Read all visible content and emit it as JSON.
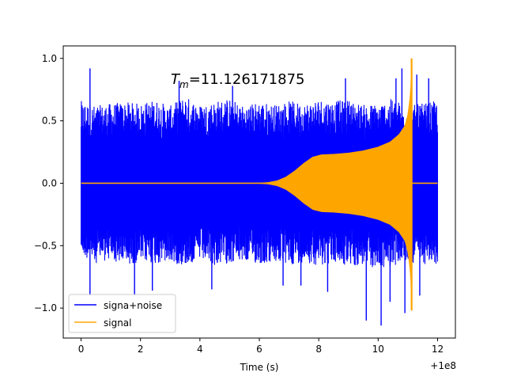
{
  "chart_data": {
    "type": "line",
    "title": "",
    "xlabel": "Time (s)",
    "ylabel": "",
    "x_offset_label": "+1e8",
    "xlim": [
      -0.6,
      12.6
    ],
    "ylim": [
      -1.24,
      1.1
    ],
    "x_ticks": [
      0,
      2,
      4,
      6,
      8,
      10,
      12
    ],
    "x_tick_labels": [
      "0",
      "2",
      "4",
      "6",
      "8",
      "10",
      "12"
    ],
    "y_ticks": [
      -1.0,
      -0.5,
      0.0,
      0.5,
      1.0
    ],
    "y_tick_labels": [
      "−1.0",
      "−0.5",
      "0.0",
      "0.5",
      "1.0"
    ],
    "annotation": "T_m=11.126171875",
    "annotation_parts": {
      "main": "T",
      "sub": "m",
      "rest": "=11.126171875"
    },
    "legend_position": "lower-left",
    "grid": false,
    "series": [
      {
        "name": "signa+noise",
        "color": "#0000ff",
        "x_range": [
          0,
          12
        ],
        "envelope_max": [
          [
            0.0,
            0.66
          ],
          [
            0.5,
            0.62
          ],
          [
            1.0,
            0.64
          ],
          [
            1.5,
            0.65
          ],
          [
            2.0,
            0.64
          ],
          [
            2.5,
            0.67
          ],
          [
            3.0,
            0.62
          ],
          [
            3.5,
            0.7
          ],
          [
            4.0,
            0.63
          ],
          [
            4.5,
            0.66
          ],
          [
            5.0,
            0.68
          ],
          [
            5.5,
            0.62
          ],
          [
            6.0,
            0.66
          ],
          [
            6.5,
            0.63
          ],
          [
            7.0,
            0.66
          ],
          [
            7.5,
            0.64
          ],
          [
            8.0,
            0.68
          ],
          [
            8.5,
            0.66
          ],
          [
            9.0,
            0.67
          ],
          [
            9.5,
            0.63
          ],
          [
            10.0,
            0.64
          ],
          [
            10.5,
            0.68
          ],
          [
            11.0,
            0.62
          ],
          [
            11.5,
            0.64
          ],
          [
            12.0,
            0.66
          ]
        ],
        "envelope_min": [
          [
            0.0,
            -0.58
          ],
          [
            0.5,
            -0.64
          ],
          [
            1.0,
            -0.62
          ],
          [
            1.5,
            -0.66
          ],
          [
            2.0,
            -0.63
          ],
          [
            2.5,
            -0.65
          ],
          [
            3.0,
            -0.64
          ],
          [
            3.5,
            -0.66
          ],
          [
            4.0,
            -0.62
          ],
          [
            4.5,
            -0.66
          ],
          [
            5.0,
            -0.64
          ],
          [
            5.5,
            -0.63
          ],
          [
            6.0,
            -0.65
          ],
          [
            6.5,
            -0.64
          ],
          [
            7.0,
            -0.66
          ],
          [
            7.5,
            -0.63
          ],
          [
            8.0,
            -0.66
          ],
          [
            8.5,
            -0.64
          ],
          [
            9.0,
            -0.67
          ],
          [
            9.5,
            -0.66
          ],
          [
            10.0,
            -0.69
          ],
          [
            10.5,
            -0.66
          ],
          [
            11.0,
            -0.64
          ],
          [
            11.5,
            -0.65
          ],
          [
            12.0,
            -0.66
          ]
        ],
        "spikes": [
          [
            0.3,
            0.92
          ],
          [
            0.3,
            -0.9
          ],
          [
            1.8,
            -0.9
          ],
          [
            2.4,
            -0.86
          ],
          [
            3.3,
            0.82
          ],
          [
            4.4,
            -0.85
          ],
          [
            5.1,
            0.78
          ],
          [
            6.8,
            -0.82
          ],
          [
            7.4,
            -0.82
          ],
          [
            8.3,
            -0.87
          ],
          [
            8.9,
            0.84
          ],
          [
            9.6,
            -1.1
          ],
          [
            10.1,
            -1.14
          ],
          [
            10.4,
            -0.95
          ],
          [
            10.6,
            0.84
          ],
          [
            10.8,
            0.92
          ],
          [
            10.9,
            -1.04
          ],
          [
            11.3,
            0.87
          ],
          [
            11.4,
            -0.9
          ],
          [
            11.7,
            0.84
          ]
        ]
      },
      {
        "name": "signal",
        "color": "#ffa500",
        "x_range": [
          0,
          12
        ],
        "baseline": 0.0,
        "envelope": [
          [
            0.0,
            0.0
          ],
          [
            5.5,
            0.0
          ],
          [
            6.0,
            0.001
          ],
          [
            6.3,
            0.006
          ],
          [
            6.6,
            0.02
          ],
          [
            6.9,
            0.05
          ],
          [
            7.2,
            0.1
          ],
          [
            7.5,
            0.16
          ],
          [
            7.8,
            0.21
          ],
          [
            8.1,
            0.228
          ],
          [
            8.5,
            0.232
          ],
          [
            9.0,
            0.242
          ],
          [
            9.5,
            0.26
          ],
          [
            10.0,
            0.29
          ],
          [
            10.4,
            0.33
          ],
          [
            10.7,
            0.39
          ],
          [
            10.9,
            0.46
          ],
          [
            11.0,
            0.55
          ],
          [
            11.07,
            0.68
          ],
          [
            11.11,
            0.82
          ],
          [
            11.126,
            1.0
          ]
        ],
        "peak": [
          11.126,
          1.0
        ],
        "peak_min": [
          11.126,
          -1.02
        ]
      }
    ]
  }
}
